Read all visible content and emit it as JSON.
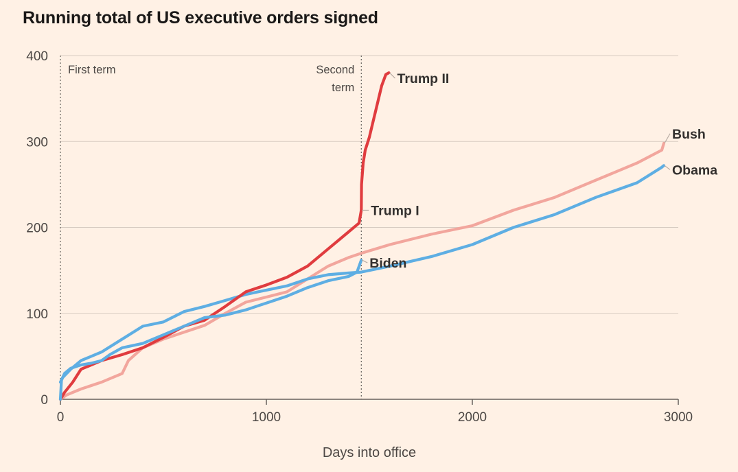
{
  "chart_data": {
    "type": "line",
    "title": "Running total of US executive orders signed",
    "xlabel": "Days into office",
    "ylabel": "",
    "xlim": [
      0,
      3000
    ],
    "ylim": [
      0,
      400
    ],
    "xticks": [
      "0",
      "1000",
      "2000",
      "3000"
    ],
    "yticks": [
      "0",
      "100",
      "200",
      "300",
      "400"
    ],
    "annotations": [
      {
        "text": "First term",
        "x": 0
      },
      {
        "text": "Second",
        "text2": "term",
        "x": 1461
      }
    ],
    "series": [
      {
        "name": "Bush",
        "color": "#f2a69d",
        "points": [
          [
            0,
            0
          ],
          [
            30,
            5
          ],
          [
            100,
            12
          ],
          [
            200,
            20
          ],
          [
            300,
            30
          ],
          [
            330,
            45
          ],
          [
            400,
            60
          ],
          [
            500,
            70
          ],
          [
            600,
            78
          ],
          [
            700,
            86
          ],
          [
            800,
            100
          ],
          [
            900,
            113
          ],
          [
            1000,
            119
          ],
          [
            1100,
            125
          ],
          [
            1200,
            140
          ],
          [
            1300,
            155
          ],
          [
            1400,
            165
          ],
          [
            1461,
            170
          ],
          [
            1600,
            180
          ],
          [
            1800,
            192
          ],
          [
            2000,
            202
          ],
          [
            2200,
            220
          ],
          [
            2400,
            235
          ],
          [
            2600,
            255
          ],
          [
            2800,
            275
          ],
          [
            2920,
            290
          ],
          [
            2930,
            298
          ]
        ]
      },
      {
        "name": "Obama",
        "color": "#5eaee3",
        "points": [
          [
            0,
            20
          ],
          [
            10,
            25
          ],
          [
            50,
            35
          ],
          [
            100,
            45
          ],
          [
            200,
            55
          ],
          [
            300,
            70
          ],
          [
            400,
            85
          ],
          [
            500,
            90
          ],
          [
            600,
            102
          ],
          [
            700,
            108
          ],
          [
            800,
            115
          ],
          [
            900,
            122
          ],
          [
            1000,
            127
          ],
          [
            1100,
            132
          ],
          [
            1200,
            140
          ],
          [
            1300,
            145
          ],
          [
            1400,
            147
          ],
          [
            1461,
            148
          ],
          [
            1600,
            155
          ],
          [
            1800,
            166
          ],
          [
            2000,
            180
          ],
          [
            2200,
            200
          ],
          [
            2400,
            215
          ],
          [
            2600,
            235
          ],
          [
            2800,
            252
          ],
          [
            2920,
            270
          ],
          [
            2930,
            272
          ]
        ]
      },
      {
        "name": "Trump I",
        "color": "#e03c3f",
        "points": [
          [
            0,
            0
          ],
          [
            20,
            8
          ],
          [
            60,
            20
          ],
          [
            100,
            35
          ],
          [
            200,
            45
          ],
          [
            300,
            52
          ],
          [
            400,
            60
          ],
          [
            500,
            72
          ],
          [
            600,
            85
          ],
          [
            700,
            92
          ],
          [
            800,
            108
          ],
          [
            900,
            125
          ],
          [
            1000,
            133
          ],
          [
            1100,
            142
          ],
          [
            1200,
            155
          ],
          [
            1300,
            175
          ],
          [
            1400,
            195
          ],
          [
            1450,
            205
          ],
          [
            1461,
            220
          ]
        ]
      },
      {
        "name": "Trump II",
        "color": "#e03c3f",
        "points": [
          [
            1461,
            220
          ],
          [
            1462,
            250
          ],
          [
            1470,
            275
          ],
          [
            1480,
            290
          ],
          [
            1500,
            305
          ],
          [
            1520,
            325
          ],
          [
            1540,
            345
          ],
          [
            1560,
            365
          ],
          [
            1580,
            378
          ],
          [
            1595,
            380
          ]
        ]
      },
      {
        "name": "Biden",
        "color": "#5eaee3",
        "points": [
          [
            0,
            0
          ],
          [
            5,
            22
          ],
          [
            20,
            30
          ],
          [
            50,
            36
          ],
          [
            100,
            40
          ],
          [
            150,
            42
          ],
          [
            200,
            45
          ],
          [
            240,
            52
          ],
          [
            300,
            60
          ],
          [
            400,
            65
          ],
          [
            500,
            75
          ],
          [
            600,
            85
          ],
          [
            700,
            95
          ],
          [
            800,
            98
          ],
          [
            900,
            104
          ],
          [
            1000,
            112
          ],
          [
            1100,
            120
          ],
          [
            1200,
            130
          ],
          [
            1300,
            138
          ],
          [
            1400,
            143
          ],
          [
            1440,
            148
          ],
          [
            1461,
            162
          ]
        ]
      }
    ]
  }
}
